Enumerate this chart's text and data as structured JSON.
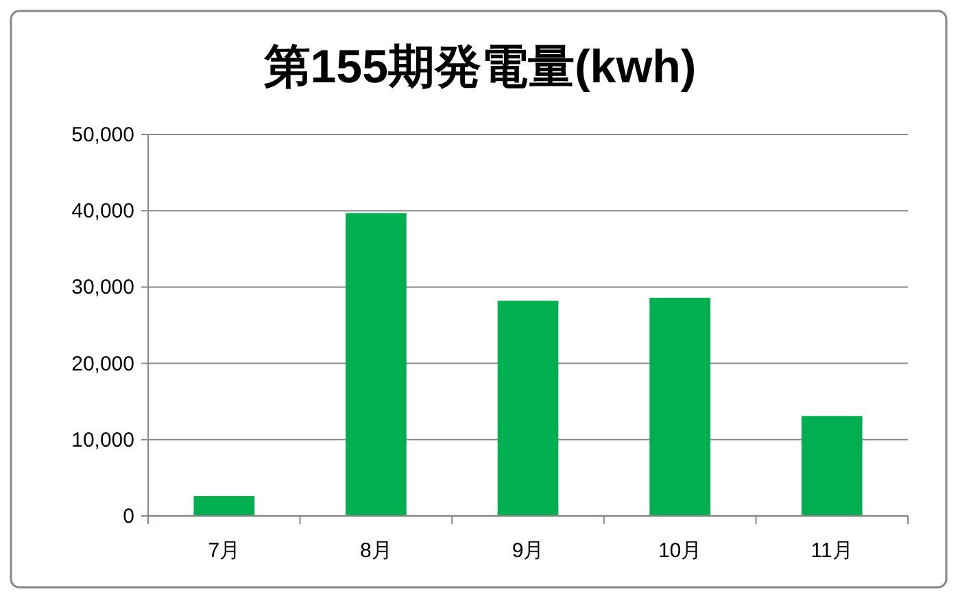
{
  "chart_data": {
    "type": "bar",
    "title": "第155期発電量(kwh)",
    "categories": [
      "7月",
      "8月",
      "9月",
      "10月",
      "11月"
    ],
    "values": [
      2600,
      39700,
      28200,
      28600,
      13100
    ],
    "color": "#00b050",
    "ylim": [
      0,
      50000
    ],
    "yticks": [
      {
        "value": 0,
        "label": "0"
      },
      {
        "value": 10000,
        "label": "10,000"
      },
      {
        "value": 20000,
        "label": "20,000"
      },
      {
        "value": 30000,
        "label": "30,000"
      },
      {
        "value": 40000,
        "label": "40,000"
      },
      {
        "value": 50000,
        "label": "50,000"
      }
    ],
    "grid": "y"
  }
}
